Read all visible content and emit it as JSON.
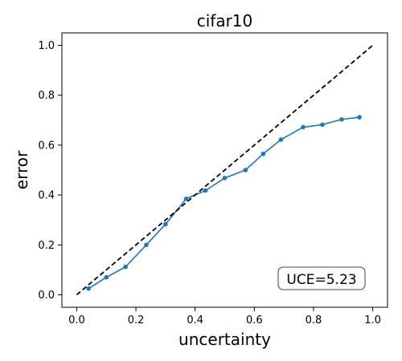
{
  "chart_data": {
    "type": "line",
    "title": "cifar10",
    "xlabel": "uncertainty",
    "ylabel": "error",
    "xlim": [
      -0.05,
      1.05
    ],
    "ylim": [
      -0.05,
      1.05
    ],
    "xticks": [
      "0.0",
      "0.2",
      "0.4",
      "0.6",
      "0.8",
      "1.0"
    ],
    "yticks": [
      "0.0",
      "0.2",
      "0.4",
      "0.6",
      "0.8",
      "1.0"
    ],
    "grid": false,
    "legend": "none",
    "series": [
      {
        "style": "solid-with-markers",
        "color": "#1f77b4",
        "x": [
          0.04,
          0.1,
          0.165,
          0.235,
          0.3,
          0.37,
          0.435,
          0.5,
          0.57,
          0.63,
          0.69,
          0.765,
          0.83,
          0.895,
          0.955
        ],
        "y": [
          0.025,
          0.07,
          0.112,
          0.2,
          0.283,
          0.385,
          0.418,
          0.468,
          0.5,
          0.565,
          0.622,
          0.672,
          0.682,
          0.703,
          0.712
        ]
      },
      {
        "style": "dashed",
        "color": "#000000",
        "x": [
          0.0,
          1.0
        ],
        "y": [
          0.0,
          1.0
        ]
      }
    ],
    "annotation": {
      "text": "UCE=5.23",
      "placement": "bottom-right"
    }
  }
}
